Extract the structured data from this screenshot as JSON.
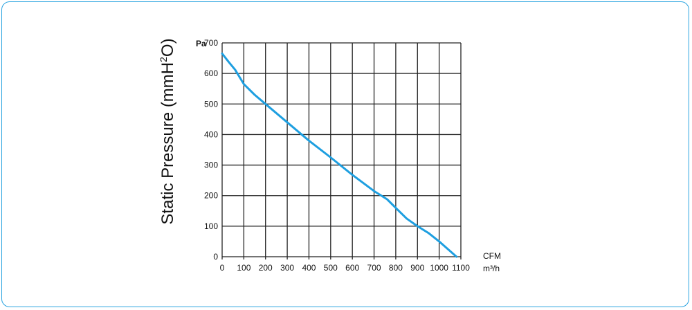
{
  "chart_data": {
    "type": "line",
    "ylabel_main": "Static Pressure (mmH",
    "ylabel_sup": "2",
    "ylabel_end": "O)",
    "y_unit": "Pa",
    "x_units": [
      "CFM",
      "m³/h"
    ],
    "xlim": [
      0,
      1100
    ],
    "ylim": [
      0,
      700
    ],
    "x_ticks": [
      0,
      100,
      200,
      300,
      400,
      500,
      600,
      700,
      800,
      900,
      1000,
      1100
    ],
    "y_ticks": [
      0,
      100,
      200,
      300,
      400,
      500,
      600,
      700
    ],
    "grid": true,
    "colors": {
      "line": "#1e9fe0",
      "grid": "#222222",
      "frame": "#29a3e0"
    },
    "series": [
      {
        "x": [
          0,
          30,
          60,
          100,
          150,
          200,
          300,
          400,
          500,
          600,
          700,
          760,
          800,
          850,
          900,
          950,
          1000,
          1040,
          1080
        ],
        "y": [
          665,
          638,
          612,
          565,
          530,
          500,
          440,
          380,
          325,
          268,
          215,
          188,
          160,
          125,
          100,
          78,
          50,
          25,
          0
        ]
      }
    ]
  }
}
